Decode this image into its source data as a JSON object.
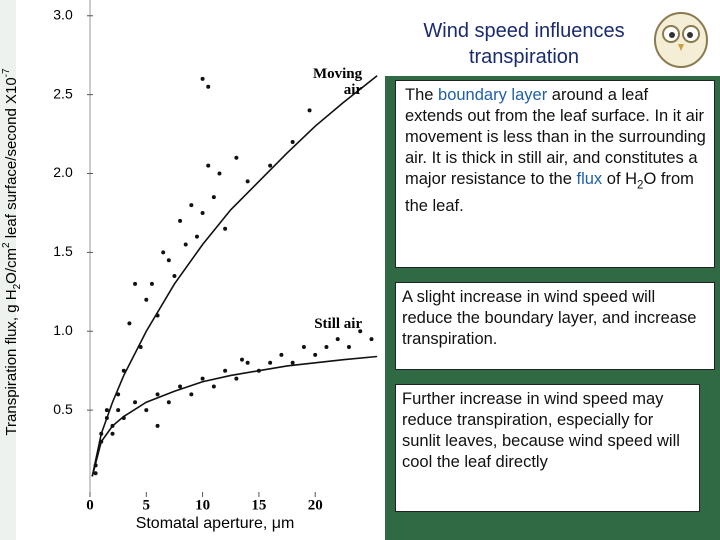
{
  "chart_data": {
    "type": "scatter",
    "ylabel": [
      {
        "text": "Transpiration flux, g H"
      },
      {
        "text": "2",
        "shift": "sub"
      },
      {
        "text": "O/cm"
      },
      {
        "text": "2",
        "shift": "super"
      },
      {
        "text": " leaf surface/second X10"
      },
      {
        "text": "-7",
        "shift": "super"
      }
    ],
    "xlabel": "Stomatal aperture, μm",
    "xlim": [
      0,
      26.2
    ],
    "ylim": [
      0,
      3.1
    ],
    "xticks": [
      0,
      5,
      10,
      15,
      20
    ],
    "yticks": [
      0.5,
      {
        "value": 1,
        "label": "1.0"
      },
      1.5,
      {
        "value": 2,
        "label": "2.0"
      },
      2.5,
      {
        "value": 3,
        "label": "3.0"
      }
    ],
    "series": [
      {
        "name": "Moving air",
        "color": "#111111",
        "x": [
          0.5,
          1,
          1.5,
          2,
          2.5,
          3,
          3.5,
          4,
          4.5,
          5,
          5.5,
          6,
          6.5,
          7,
          7.5,
          8,
          8.5,
          9,
          9.5,
          10,
          10.5,
          11,
          11.5,
          12,
          13,
          14,
          16,
          18,
          10,
          10.5,
          19.5
        ],
        "values": [
          0.15,
          0.35,
          0.5,
          0.4,
          0.6,
          0.75,
          1.05,
          1.3,
          0.9,
          1.2,
          1.3,
          1.1,
          1.5,
          1.45,
          1.35,
          1.7,
          1.55,
          1.8,
          1.6,
          1.75,
          2.05,
          1.85,
          2.0,
          1.65,
          2.1,
          1.95,
          2.05,
          2.2,
          2.6,
          2.55,
          2.4
        ],
        "curve": {
          "x": [
            0.2,
            1,
            2,
            3,
            5,
            7.5,
            10,
            12.5,
            15,
            17.5,
            20,
            22.5,
            25.5
          ],
          "values": [
            0.08,
            0.35,
            0.55,
            0.72,
            1.0,
            1.3,
            1.55,
            1.77,
            1.95,
            2.13,
            2.3,
            2.45,
            2.62
          ]
        }
      },
      {
        "name": "Still air",
        "color": "#111111",
        "x": [
          0.5,
          1,
          1.5,
          2,
          2.5,
          3,
          4,
          5,
          6,
          7,
          8,
          9,
          10,
          11,
          12,
          13,
          14,
          15,
          16,
          17,
          18,
          19,
          20,
          21,
          22,
          23,
          24,
          25,
          13.5,
          6
        ],
        "values": [
          0.1,
          0.3,
          0.45,
          0.35,
          0.5,
          0.45,
          0.55,
          0.5,
          0.6,
          0.55,
          0.65,
          0.6,
          0.7,
          0.65,
          0.75,
          0.7,
          0.8,
          0.75,
          0.8,
          0.85,
          0.8,
          0.9,
          0.85,
          0.9,
          0.95,
          0.9,
          1.0,
          0.95,
          0.82,
          0.4
        ],
        "curve": {
          "x": [
            0.2,
            1,
            2,
            3,
            5,
            7.5,
            10,
            12.5,
            15,
            17.5,
            20,
            22.5,
            25.5
          ],
          "values": [
            0.08,
            0.3,
            0.4,
            0.46,
            0.55,
            0.62,
            0.68,
            0.72,
            0.75,
            0.78,
            0.8,
            0.82,
            0.84
          ]
        }
      }
    ]
  },
  "slide": {
    "title": "Wind speed influences transpiration",
    "boxes": [
      [
        {
          "text": "The "
        },
        {
          "text": "boundary layer",
          "color": "#1f5fa8"
        },
        {
          "text": " around a leaf extends out from the leaf surface. In it air movement is less than in the surrounding air.  It is thick in still air, and constitutes a major resistance to the "
        },
        {
          "text": "flux",
          "color": "#1f5fa8"
        },
        {
          "text": " of H"
        },
        {
          "text": "2",
          "shift": "sub"
        },
        {
          "text": "O from the leaf."
        }
      ],
      [
        {
          "text": "A slight increase in wind speed will reduce the boundary layer, and increase transpiration."
        }
      ],
      [
        {
          "text": "Further increase in wind speed may reduce transpiration, especially for sunlit leaves, because wind speed will cool the leaf directly"
        }
      ]
    ]
  }
}
